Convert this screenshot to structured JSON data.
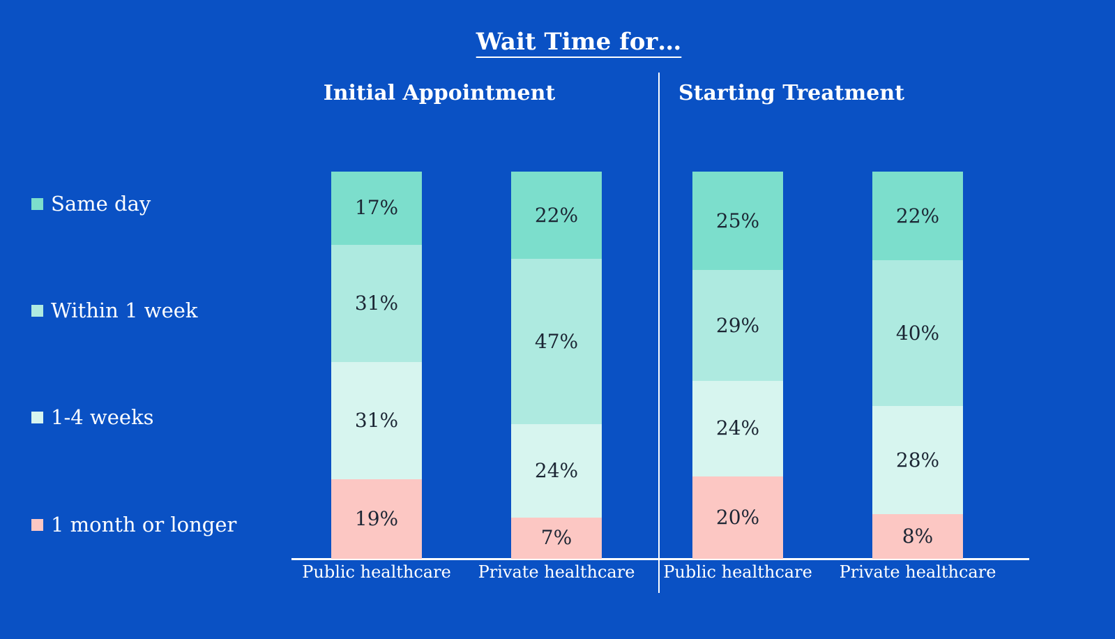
{
  "title": "Wait Time for…",
  "panels": [
    {
      "header": "Initial Appointment"
    },
    {
      "header": "Starting Treatment"
    }
  ],
  "chart_data": {
    "type": "bar",
    "stacked": true,
    "orientation": "vertical",
    "title": "Wait Time for…",
    "panel_headers": [
      "Initial Appointment",
      "Starting Treatment"
    ],
    "categories": [
      "Public healthcare",
      "Private healthcare",
      "Public healthcare",
      "Private healthcare"
    ],
    "category_panels": [
      0,
      0,
      1,
      1
    ],
    "series": [
      {
        "name": "Same day",
        "color": "#7CDECC",
        "values": [
          17,
          22,
          25,
          22
        ]
      },
      {
        "name": "Within 1 week",
        "color": "#AEEAE0",
        "values": [
          31,
          47,
          29,
          40
        ]
      },
      {
        "name": "1-4 weeks",
        "color": "#D7F5EF",
        "values": [
          31,
          24,
          24,
          28
        ]
      },
      {
        "name": "1 month or longer",
        "color": "#FCC7C3",
        "values": [
          19,
          7,
          20,
          8
        ]
      }
    ],
    "value_suffix": "%",
    "legend_position": "left",
    "grid": false,
    "colors": {
      "background": "#0A51C4",
      "bar_label_text": "#1B2533",
      "axis_line": "#FFFFFF",
      "text": "#FFFFFF"
    }
  }
}
